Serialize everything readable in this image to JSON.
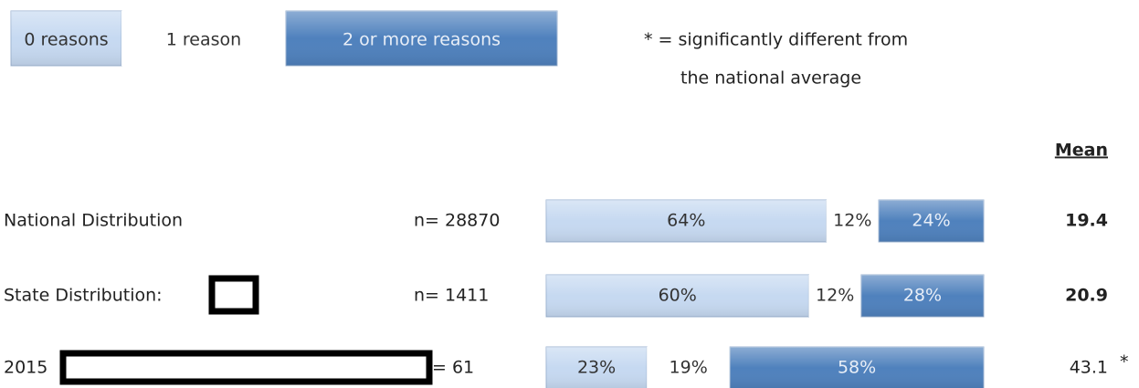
{
  "chart_data": {
    "type": "bar",
    "orientation": "horizontal",
    "stacked": true,
    "categories": [
      "National Distribution",
      "State Distribution:",
      "2015"
    ],
    "n_labels": [
      "n= 28870",
      "n= 1411",
      "= 61"
    ],
    "xlim": [
      0,
      100
    ],
    "series": [
      {
        "name": "0 reasons",
        "color": "#c6d9f1",
        "text_color": "#333333",
        "values": [
          64,
          60,
          23
        ],
        "value_labels": [
          "64%",
          "60%",
          "23%"
        ]
      },
      {
        "name": "1 reason",
        "color": "#ffffff",
        "text_color": "#333333",
        "values": [
          12,
          12,
          19
        ],
        "value_labels": [
          "12%",
          "12%",
          "19%"
        ]
      },
      {
        "name": "2 or more reasons",
        "color": "#4f81bd",
        "text_color": "#e8eef7",
        "values": [
          24,
          28,
          58
        ],
        "value_labels": [
          "24%",
          "28%",
          "58%"
        ]
      }
    ],
    "mean_label": "Mean",
    "means": [
      19.4,
      20.9,
      43.1
    ],
    "mean_notes": [
      null,
      null,
      "*"
    ],
    "note": [
      "* = significantly different from",
      "the national average"
    ]
  }
}
